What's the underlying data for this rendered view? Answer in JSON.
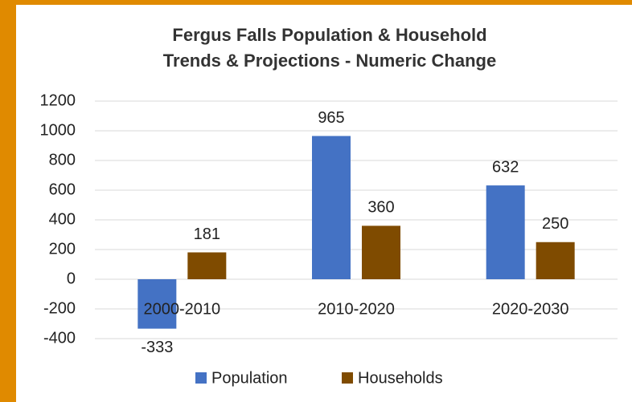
{
  "chart_data": {
    "type": "bar",
    "title": [
      "Fergus Falls Population & Household",
      "Trends & Projections - Numeric Change"
    ],
    "categories": [
      "2000-2010",
      "2010-2020",
      "2020-2030"
    ],
    "series": [
      {
        "name": "Population",
        "color": "#4472c4",
        "values": [
          -333,
          965,
          632
        ]
      },
      {
        "name": "Households",
        "color": "#7f4b00",
        "values": [
          181,
          360,
          250
        ]
      }
    ],
    "ylim": [
      -400,
      1200
    ],
    "yticks": [
      -400,
      -200,
      0,
      200,
      400,
      600,
      800,
      1000,
      1200
    ],
    "grid": true,
    "legend": "bottom"
  }
}
